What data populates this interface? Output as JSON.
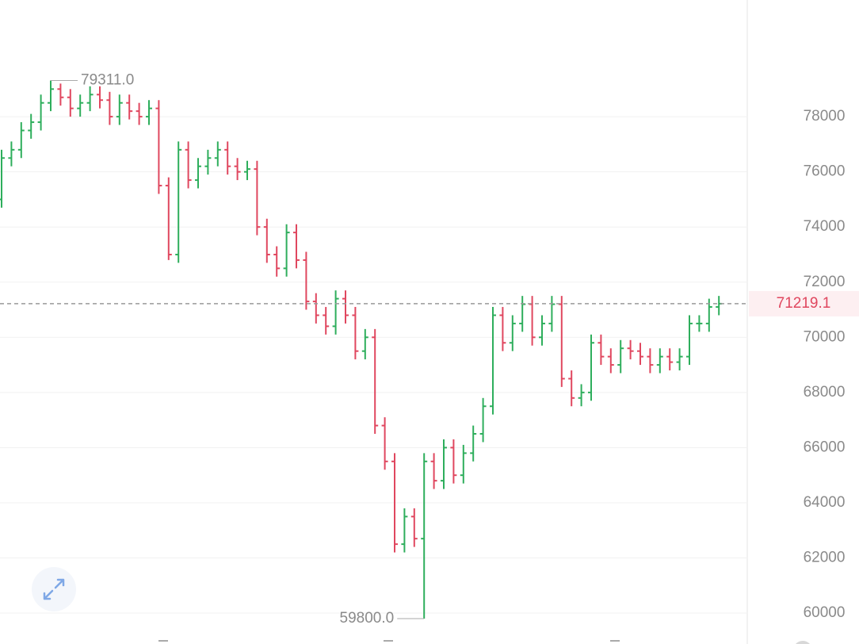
{
  "chart_data": {
    "type": "ohlc",
    "open": [
      75000,
      76500,
      76800,
      77500,
      77800,
      78500,
      79000,
      78700,
      78300,
      78500,
      78800,
      78600,
      78000,
      78500,
      78200,
      78000,
      78300,
      75500,
      73000,
      76800,
      75700,
      76200,
      76500,
      76800,
      76200,
      76000,
      76100,
      74000,
      73000,
      72500,
      73800,
      72800,
      71300,
      70800,
      70400,
      71400,
      70800,
      69500,
      70000,
      66800,
      65500,
      62500,
      63500,
      62700,
      65500,
      64800,
      66000,
      65000,
      65800,
      66500,
      67500,
      70800,
      69800,
      70500,
      71200,
      70000,
      70500,
      71200,
      68500,
      67800,
      68000,
      69800,
      69300,
      69000,
      69600,
      69500,
      69300,
      69000,
      69300,
      69100,
      69300,
      70500,
      70500,
      71100
    ],
    "high": [
      76800,
      77100,
      77800,
      78100,
      78800,
      79311,
      79200,
      79000,
      78800,
      79100,
      79100,
      78900,
      78800,
      78800,
      78500,
      78600,
      78600,
      75800,
      77100,
      77100,
      76500,
      76800,
      77100,
      77100,
      76500,
      76400,
      76400,
      74300,
      73300,
      74100,
      74100,
      73100,
      71600,
      71100,
      71700,
      71700,
      71100,
      70300,
      70300,
      67100,
      65800,
      63800,
      63800,
      65800,
      65800,
      66300,
      66300,
      66100,
      66800,
      67800,
      71100,
      71100,
      70800,
      71500,
      71500,
      70800,
      71500,
      71500,
      68800,
      68300,
      70100,
      70100,
      69600,
      69900,
      69900,
      69800,
      69600,
      69600,
      69600,
      69600,
      70800,
      70800,
      71400,
      71500
    ],
    "low": [
      74700,
      76200,
      76500,
      77200,
      77500,
      78200,
      78400,
      78000,
      78000,
      78200,
      78300,
      77700,
      77700,
      77900,
      77700,
      77700,
      75200,
      72800,
      72700,
      75400,
      75400,
      75900,
      76200,
      75900,
      75700,
      75700,
      73700,
      72700,
      72200,
      72200,
      72500,
      71000,
      70500,
      70100,
      70100,
      70500,
      69200,
      69200,
      66500,
      65200,
      62200,
      62200,
      62400,
      59800,
      64500,
      64500,
      64700,
      64700,
      65500,
      66200,
      67200,
      69500,
      69500,
      70200,
      69700,
      69700,
      70200,
      68200,
      67500,
      67500,
      67700,
      69000,
      68700,
      68700,
      69200,
      69000,
      68700,
      68700,
      68800,
      68800,
      69000,
      70200,
      70200,
      70800
    ],
    "close": [
      76500,
      76800,
      77500,
      77800,
      78500,
      79000,
      78700,
      78300,
      78500,
      78800,
      78600,
      78000,
      78500,
      78200,
      78000,
      78300,
      75500,
      73000,
      76800,
      75700,
      76200,
      76500,
      76800,
      76200,
      76000,
      76100,
      74000,
      73000,
      72500,
      73800,
      72800,
      71300,
      70800,
      70400,
      71400,
      70800,
      69500,
      70000,
      66800,
      65500,
      62500,
      63500,
      62700,
      65500,
      64800,
      66000,
      65000,
      65800,
      66500,
      67500,
      70800,
      69800,
      70500,
      71200,
      70000,
      70500,
      71200,
      68500,
      67800,
      68000,
      69800,
      69300,
      69000,
      69600,
      69500,
      69300,
      69000,
      69300,
      69100,
      69300,
      70500,
      70500,
      71100,
      71219.1
    ],
    "up_color": "#2eae5c",
    "down_color": "#e0475f",
    "ylim": [
      58880,
      82230
    ],
    "yticks": [
      60000,
      62000,
      64000,
      66000,
      68000,
      70000,
      72000,
      74000,
      76000,
      78000
    ],
    "grid": true,
    "last_price": 71219.1,
    "max_label": {
      "value": 79311,
      "label": "79311.0"
    },
    "min_label": {
      "value": 59800,
      "label": "59800.0"
    }
  }
}
